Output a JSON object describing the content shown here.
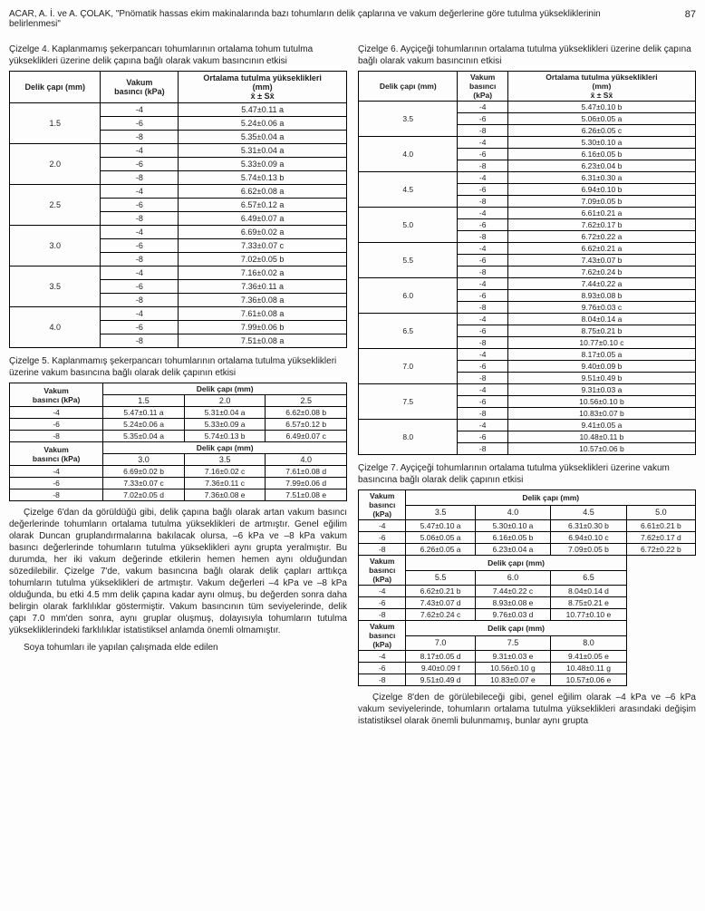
{
  "header": {
    "citation": "ACAR, A. İ. ve A. ÇOLAK, \"Pnömatik hassas ekim makinalarında bazı tohumların delik çaplarına ve vakum değerlerine göre tutulma yüksekliklerinin belirlenmesi\"",
    "page": "87"
  },
  "t4": {
    "caption": "Çizelge 4. Kaplanmamış şekerpancarı tohumlarının ortalama tohum tutulma yükseklikleri üzerine delik çapına bağlı olarak vakum basıncının etkisi",
    "h1": "Delik çapı (mm)",
    "h2": "Vakum\nbasıncı (kPa)",
    "h3": "Ortalama tutulma yükseklikleri\n(mm)\nx̄ ± Sx̄",
    "groups": [
      {
        "d": "1.5",
        "rows": [
          [
            "-4",
            "5.47±0.11 a"
          ],
          [
            "-6",
            "5.24±0.06 a"
          ],
          [
            "-8",
            "5.35±0.04 a"
          ]
        ]
      },
      {
        "d": "2.0",
        "rows": [
          [
            "-4",
            "5.31±0.04 a"
          ],
          [
            "-6",
            "5.33±0.09 a"
          ],
          [
            "-8",
            "5.74±0.13 b"
          ]
        ]
      },
      {
        "d": "2.5",
        "rows": [
          [
            "-4",
            "6.62±0.08 a"
          ],
          [
            "-6",
            "6.57±0.12 a"
          ],
          [
            "-8",
            "6.49±0.07 a"
          ]
        ]
      },
      {
        "d": "3.0",
        "rows": [
          [
            "-4",
            "6.69±0.02 a"
          ],
          [
            "-6",
            "7.33±0.07 c"
          ],
          [
            "-8",
            "7.02±0.05 b"
          ]
        ]
      },
      {
        "d": "3.5",
        "rows": [
          [
            "-4",
            "7.16±0.02 a"
          ],
          [
            "-6",
            "7.36±0.11 a"
          ],
          [
            "-8",
            "7.36±0.08 a"
          ]
        ]
      },
      {
        "d": "4.0",
        "rows": [
          [
            "-4",
            "7.61±0.08 a"
          ],
          [
            "-6",
            "7.99±0.06 b"
          ],
          [
            "-8",
            "7.51±0.08 a"
          ]
        ]
      }
    ]
  },
  "t5": {
    "caption": "Çizelge 5. Kaplanmamış şekerpancarı tohumlarının ortalama tutulma yükseklikleri üzerine vakum basıncına bağlı olarak delik çapının etkisi",
    "hL": "Vakum\nbasıncı (kPa)",
    "hR": "Delik çapı (mm)",
    "block1": {
      "cols": [
        "1.5",
        "2.0",
        "2.5"
      ],
      "rows": [
        [
          "-4",
          "5.47±0.11 a",
          "5.31±0.04 a",
          "6.62±0.08 b"
        ],
        [
          "-6",
          "5.24±0.06 a",
          "5.33±0.09 a",
          "6.57±0.12 b"
        ],
        [
          "-8",
          "5.35±0.04 a",
          "5.74±0.13 b",
          "6.49±0.07 c"
        ]
      ]
    },
    "block2": {
      "cols": [
        "3.0",
        "3.5",
        "4.0"
      ],
      "rows": [
        [
          "-4",
          "6.69±0.02 b",
          "7.16±0.02 c",
          "7.61±0.08 d"
        ],
        [
          "-6",
          "7.33±0.07 c",
          "7.36±0.11 c",
          "7.99±0.06 d"
        ],
        [
          "-8",
          "7.02±0.05 d",
          "7.36±0.08 e",
          "7.51±0.08 e"
        ]
      ]
    }
  },
  "para1": "Çizelge 6'dan da görüldüğü gibi, delik çapına bağlı olarak artan vakum basıncı değerlerinde tohumların ortalama tutulma yükseklikleri de artmıştır. Genel eğilim olarak Duncan gruplandırmalarına bakılacak olursa, –6 kPa ve –8 kPa vakum basıncı değerlerinde tohumların tutulma yükseklikleri aynı grupta yeralmıştır. Bu durumda, her iki vakum değerinde etkilerin hemen hemen aynı olduğundan sözedilebilir. Çizelge 7'de, vakum basıncına bağlı olarak delik çapları arttıkça tohumların tutulma yükseklikleri de artmıştır. Vakum değerleri –4 kPa ve –8 kPa olduğunda, bu etki 4.5 mm delik çapına kadar aynı olmuş, bu değerden sonra daha belirgin olarak farklılıklar göstermiştir. Vakum basıncının tüm seviyelerinde, delik çapı 7.0 mm'den sonra, aynı gruplar oluşmuş, dolayısıyla tohumların tutulma yüksekliklerindeki farklılıklar istatistiksel anlamda önemli olmamıştır.",
  "para2": "Soya tohumları ile yapılan çalışmada elde edilen",
  "t6": {
    "caption": "Çizelge 6. Ayçiçeği tohumlarının ortalama tutulma yükseklikleri üzerine delik çapına bağlı olarak vakum basıncının etkisi",
    "h1": "Delik çapı (mm)",
    "h2": "Vakum\nbasıncı\n(kPa)",
    "h3": "Ortalama tutulma yükseklikleri\n(mm)\nx̄ ± Sx̄",
    "groups": [
      {
        "d": "3.5",
        "rows": [
          [
            "-4",
            "5.47±0.10 b"
          ],
          [
            "-6",
            "5.06±0.05 a"
          ],
          [
            "-8",
            "6.26±0.05 c"
          ]
        ]
      },
      {
        "d": "4.0",
        "rows": [
          [
            "-4",
            "5.30±0.10 a"
          ],
          [
            "-6",
            "6.16±0.05 b"
          ],
          [
            "-8",
            "6.23±0.04 b"
          ]
        ]
      },
      {
        "d": "4.5",
        "rows": [
          [
            "-4",
            "6.31±0.30 a"
          ],
          [
            "-6",
            "6.94±0.10 b"
          ],
          [
            "-8",
            "7.09±0.05 b"
          ]
        ]
      },
      {
        "d": "5.0",
        "rows": [
          [
            "-4",
            "6.61±0.21 a"
          ],
          [
            "-6",
            "7.62±0.17 b"
          ],
          [
            "-8",
            "6.72±0.22 a"
          ]
        ]
      },
      {
        "d": "5.5",
        "rows": [
          [
            "-4",
            "6.62±0.21 a"
          ],
          [
            "-6",
            "7.43±0.07 b"
          ],
          [
            "-8",
            "7.62±0.24 b"
          ]
        ]
      },
      {
        "d": "6.0",
        "rows": [
          [
            "-4",
            "7.44±0.22 a"
          ],
          [
            "-6",
            "8.93±0.08 b"
          ],
          [
            "-8",
            "9.76±0.03 c"
          ]
        ]
      },
      {
        "d": "6.5",
        "rows": [
          [
            "-4",
            "8.04±0.14 a"
          ],
          [
            "-6",
            "8.75±0.21 b"
          ],
          [
            "-8",
            "10.77±0.10 c"
          ]
        ]
      },
      {
        "d": "7.0",
        "rows": [
          [
            "-4",
            "8.17±0.05 a"
          ],
          [
            "-6",
            "9.40±0.09 b"
          ],
          [
            "-8",
            "9.51±0.49 b"
          ]
        ]
      },
      {
        "d": "7.5",
        "rows": [
          [
            "-4",
            "9.31±0.03 a"
          ],
          [
            "-6",
            "10.56±0.10 b"
          ],
          [
            "-8",
            "10.83±0.07 b"
          ]
        ]
      },
      {
        "d": "8.0",
        "rows": [
          [
            "-4",
            "9.41±0.05 a"
          ],
          [
            "-6",
            "10.48±0.11 b"
          ],
          [
            "-8",
            "10.57±0.06 b"
          ]
        ]
      }
    ]
  },
  "t7": {
    "caption": "Çizelge 7. Ayçiçeği tohumlarının ortalama tutulma yükseklikleri üzerine vakum basıncına bağlı olarak delik çapının etkisi",
    "hL": "Vakum\nbasıncı\n(kPa)",
    "hR": "Delik çapı (mm)",
    "block1": {
      "cols": [
        "3.5",
        "4.0",
        "4.5",
        "5.0"
      ],
      "rows": [
        [
          "-4",
          "5.47±0.10 a",
          "5.30±0.10 a",
          "6.31±0.30 b",
          "6.61±0.21 b"
        ],
        [
          "-6",
          "5.06±0.05 a",
          "6.16±0.05 b",
          "6.94±0.10 c",
          "7.62±0.17 d"
        ],
        [
          "-8",
          "6.26±0.05 a",
          "6.23±0.04 a",
          "7.09±0.05 b",
          "6.72±0.22 b"
        ]
      ]
    },
    "block2": {
      "cols": [
        "5.5",
        "6.0",
        "6.5"
      ],
      "rows": [
        [
          "-4",
          "6.62±0.21 b",
          "7.44±0.22 c",
          "8.04±0.14 d"
        ],
        [
          "-6",
          "7.43±0.07 d",
          "8.93±0.08 e",
          "8.75±0.21 e"
        ],
        [
          "-8",
          "7.62±0.24 c",
          "9.76±0.03 d",
          "10.77±0.10 e"
        ]
      ]
    },
    "block3": {
      "cols": [
        "7.0",
        "7.5",
        "8.0"
      ],
      "rows": [
        [
          "-4",
          "8.17±0.05 d",
          "9.31±0.03 e",
          "9.41±0.05 e"
        ],
        [
          "-6",
          "9.40±0.09 f",
          "10.56±0.10 g",
          "10.48±0.11 g"
        ],
        [
          "-8",
          "9.51±0.49 d",
          "10.83±0.07 e",
          "10.57±0.06 e"
        ]
      ]
    }
  },
  "para3": "Çizelge 8'den de görülebileceği gibi, genel eğilim olarak –4 kPa ve –6 kPa vakum seviyelerinde, tohumların ortalama tutulma yükseklikleri arasındaki değişim istatistiksel olarak önemli bulunmamış, bunlar aynı grupta"
}
